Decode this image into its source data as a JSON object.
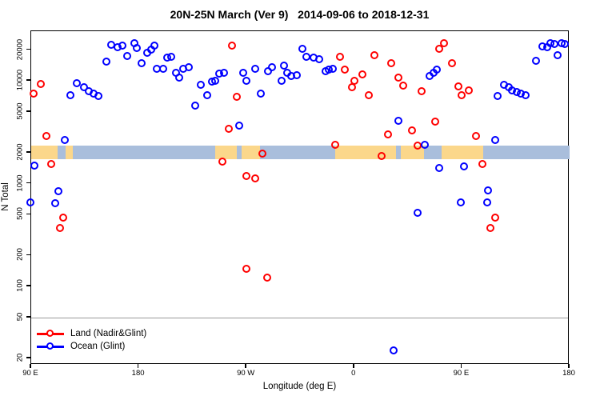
{
  "title": "20N-25N March (Ver 9)   2014-09-06 to 2018-12-31",
  "x_axis": {
    "label": "Longitude (deg E)",
    "ticks": [
      {
        "value": 90,
        "label": "90 E"
      },
      {
        "value": 180,
        "label": "180"
      },
      {
        "value": 270,
        "label": "90 W"
      },
      {
        "value": 360,
        "label": "0"
      },
      {
        "value": 450,
        "label": "90 E"
      },
      {
        "value": 540,
        "label": "180"
      }
    ]
  },
  "y_axis": {
    "label": "N Total",
    "ticks": [
      {
        "value": 20,
        "label": "20"
      },
      {
        "value": 50,
        "label": "50"
      },
      {
        "value": 100,
        "label": "100"
      },
      {
        "value": 200,
        "label": "200"
      },
      {
        "value": 500,
        "label": "500"
      },
      {
        "value": 1000,
        "label": "1000"
      },
      {
        "value": 2000,
        "label": "2000"
      },
      {
        "value": 5000,
        "label": "5000"
      },
      {
        "value": 10000,
        "label": "10000"
      },
      {
        "value": 20000,
        "label": "20000"
      }
    ]
  },
  "legend": {
    "items": [
      {
        "label": "Land (Nadir&Glint)",
        "color": "#ff0000"
      },
      {
        "label": "Ocean (Glint)",
        "color": "#0000ff"
      }
    ]
  },
  "colors": {
    "land_marker": "#ff0000",
    "ocean_marker": "#0000ff",
    "band_land": "#fbd78b",
    "band_ocean": "#a9bedc",
    "reference_line": "#9a9a9a",
    "axis": "#000000"
  },
  "chart_data": {
    "type": "scatter",
    "title": "20N-25N March (Ver 9)   2014-09-06 to 2018-12-31",
    "xlabel": "Longitude (deg E)",
    "ylabel": "N Total",
    "x_is_longitude_deg_east": true,
    "xlim": [
      90,
      540
    ],
    "ylim": [
      17.3,
      30500
    ],
    "y_scale": "log10",
    "grid": false,
    "legend_position": "bottom-left",
    "reference_line_y": 50,
    "coast_band": {
      "description": "land/ocean strip drawn across the plot at N ~2000",
      "value_center": 2000,
      "ocean_color": "#a9bedc",
      "land_color": "#fbd78b",
      "land_segments_lon": [
        [
          90,
          112
        ],
        [
          119,
          125
        ],
        [
          244,
          262
        ],
        [
          266,
          281
        ],
        [
          344,
          395
        ],
        [
          399,
          418
        ],
        [
          433,
          468
        ]
      ]
    },
    "series": [
      {
        "name": "Land (Nadir&Glint)",
        "color": "#ff0000",
        "points": [
          [
            92,
            7500
          ],
          [
            98,
            9300
          ],
          [
            103,
            2900
          ],
          [
            107,
            1560
          ],
          [
            114,
            370
          ],
          [
            117,
            470
          ],
          [
            250,
            1640
          ],
          [
            255,
            3400
          ],
          [
            258,
            22000
          ],
          [
            262,
            7000
          ],
          [
            270,
            1190
          ],
          [
            277,
            1130
          ],
          [
            283,
            1980
          ],
          [
            270,
            150
          ],
          [
            287,
            122
          ],
          [
            344,
            2400
          ],
          [
            348,
            17200
          ],
          [
            352,
            13000
          ],
          [
            358,
            8700
          ],
          [
            360,
            10000
          ],
          [
            367,
            11600
          ],
          [
            372,
            7300
          ],
          [
            377,
            17900
          ],
          [
            383,
            1870
          ],
          [
            388,
            3000
          ],
          [
            391,
            14900
          ],
          [
            397,
            10800
          ],
          [
            401,
            9000
          ],
          [
            408,
            3300
          ],
          [
            413,
            2350
          ],
          [
            416,
            8000
          ],
          [
            428,
            4000
          ],
          [
            431,
            20600
          ],
          [
            435,
            23300
          ],
          [
            442,
            14900
          ],
          [
            447,
            8900
          ],
          [
            450,
            7300
          ],
          [
            456,
            8100
          ],
          [
            462,
            2900
          ],
          [
            467,
            1560
          ],
          [
            474,
            370
          ],
          [
            478,
            470
          ]
        ]
      },
      {
        "name": "Ocean (Glint)",
        "color": "#0000ff",
        "points": [
          [
            89,
            660
          ],
          [
            93,
            1500
          ],
          [
            110,
            650
          ],
          [
            113,
            850
          ],
          [
            118,
            2660
          ],
          [
            123,
            7300
          ],
          [
            128,
            9500
          ],
          [
            134,
            8700
          ],
          [
            138,
            8000
          ],
          [
            142,
            7600
          ],
          [
            146,
            7200
          ],
          [
            153,
            15400
          ],
          [
            157,
            22500
          ],
          [
            162,
            21300
          ],
          [
            166,
            22200
          ],
          [
            170,
            17500
          ],
          [
            176,
            23300
          ],
          [
            178,
            20800
          ],
          [
            182,
            14900
          ],
          [
            187,
            18700
          ],
          [
            190,
            20300
          ],
          [
            193,
            22200
          ],
          [
            195,
            13200
          ],
          [
            200,
            13200
          ],
          [
            204,
            17000
          ],
          [
            207,
            17200
          ],
          [
            211,
            12000
          ],
          [
            214,
            10800
          ],
          [
            217,
            13100
          ],
          [
            222,
            13600
          ],
          [
            227,
            5800
          ],
          [
            232,
            9200
          ],
          [
            237,
            7300
          ],
          [
            241,
            9900
          ],
          [
            244,
            10000
          ],
          [
            247,
            11900
          ],
          [
            251,
            12100
          ],
          [
            264,
            3700
          ],
          [
            267,
            12100
          ],
          [
            270,
            10000
          ],
          [
            277,
            13100
          ],
          [
            282,
            7600
          ],
          [
            288,
            12500
          ],
          [
            291,
            13600
          ],
          [
            299,
            10000
          ],
          [
            301,
            14200
          ],
          [
            304,
            12100
          ],
          [
            307,
            11100
          ],
          [
            312,
            11400
          ],
          [
            317,
            20600
          ],
          [
            320,
            17200
          ],
          [
            326,
            17000
          ],
          [
            331,
            16300
          ],
          [
            336,
            12500
          ],
          [
            339,
            13000
          ],
          [
            342,
            13100
          ],
          [
            393,
            24
          ],
          [
            397,
            4100
          ],
          [
            413,
            520
          ],
          [
            419,
            2400
          ],
          [
            423,
            11100
          ],
          [
            426,
            12100
          ],
          [
            429,
            12900
          ],
          [
            431,
            1420
          ],
          [
            449,
            660
          ],
          [
            452,
            1480
          ],
          [
            471,
            660
          ],
          [
            472,
            860
          ],
          [
            478,
            2660
          ],
          [
            480,
            7200
          ],
          [
            485,
            9200
          ],
          [
            489,
            8700
          ],
          [
            492,
            8100
          ],
          [
            496,
            7800
          ],
          [
            499,
            7600
          ],
          [
            503,
            7300
          ],
          [
            512,
            15800
          ],
          [
            517,
            21800
          ],
          [
            521,
            21300
          ],
          [
            524,
            23300
          ],
          [
            527,
            23100
          ],
          [
            530,
            17900
          ],
          [
            533,
            23300
          ],
          [
            536,
            23100
          ]
        ]
      }
    ]
  }
}
